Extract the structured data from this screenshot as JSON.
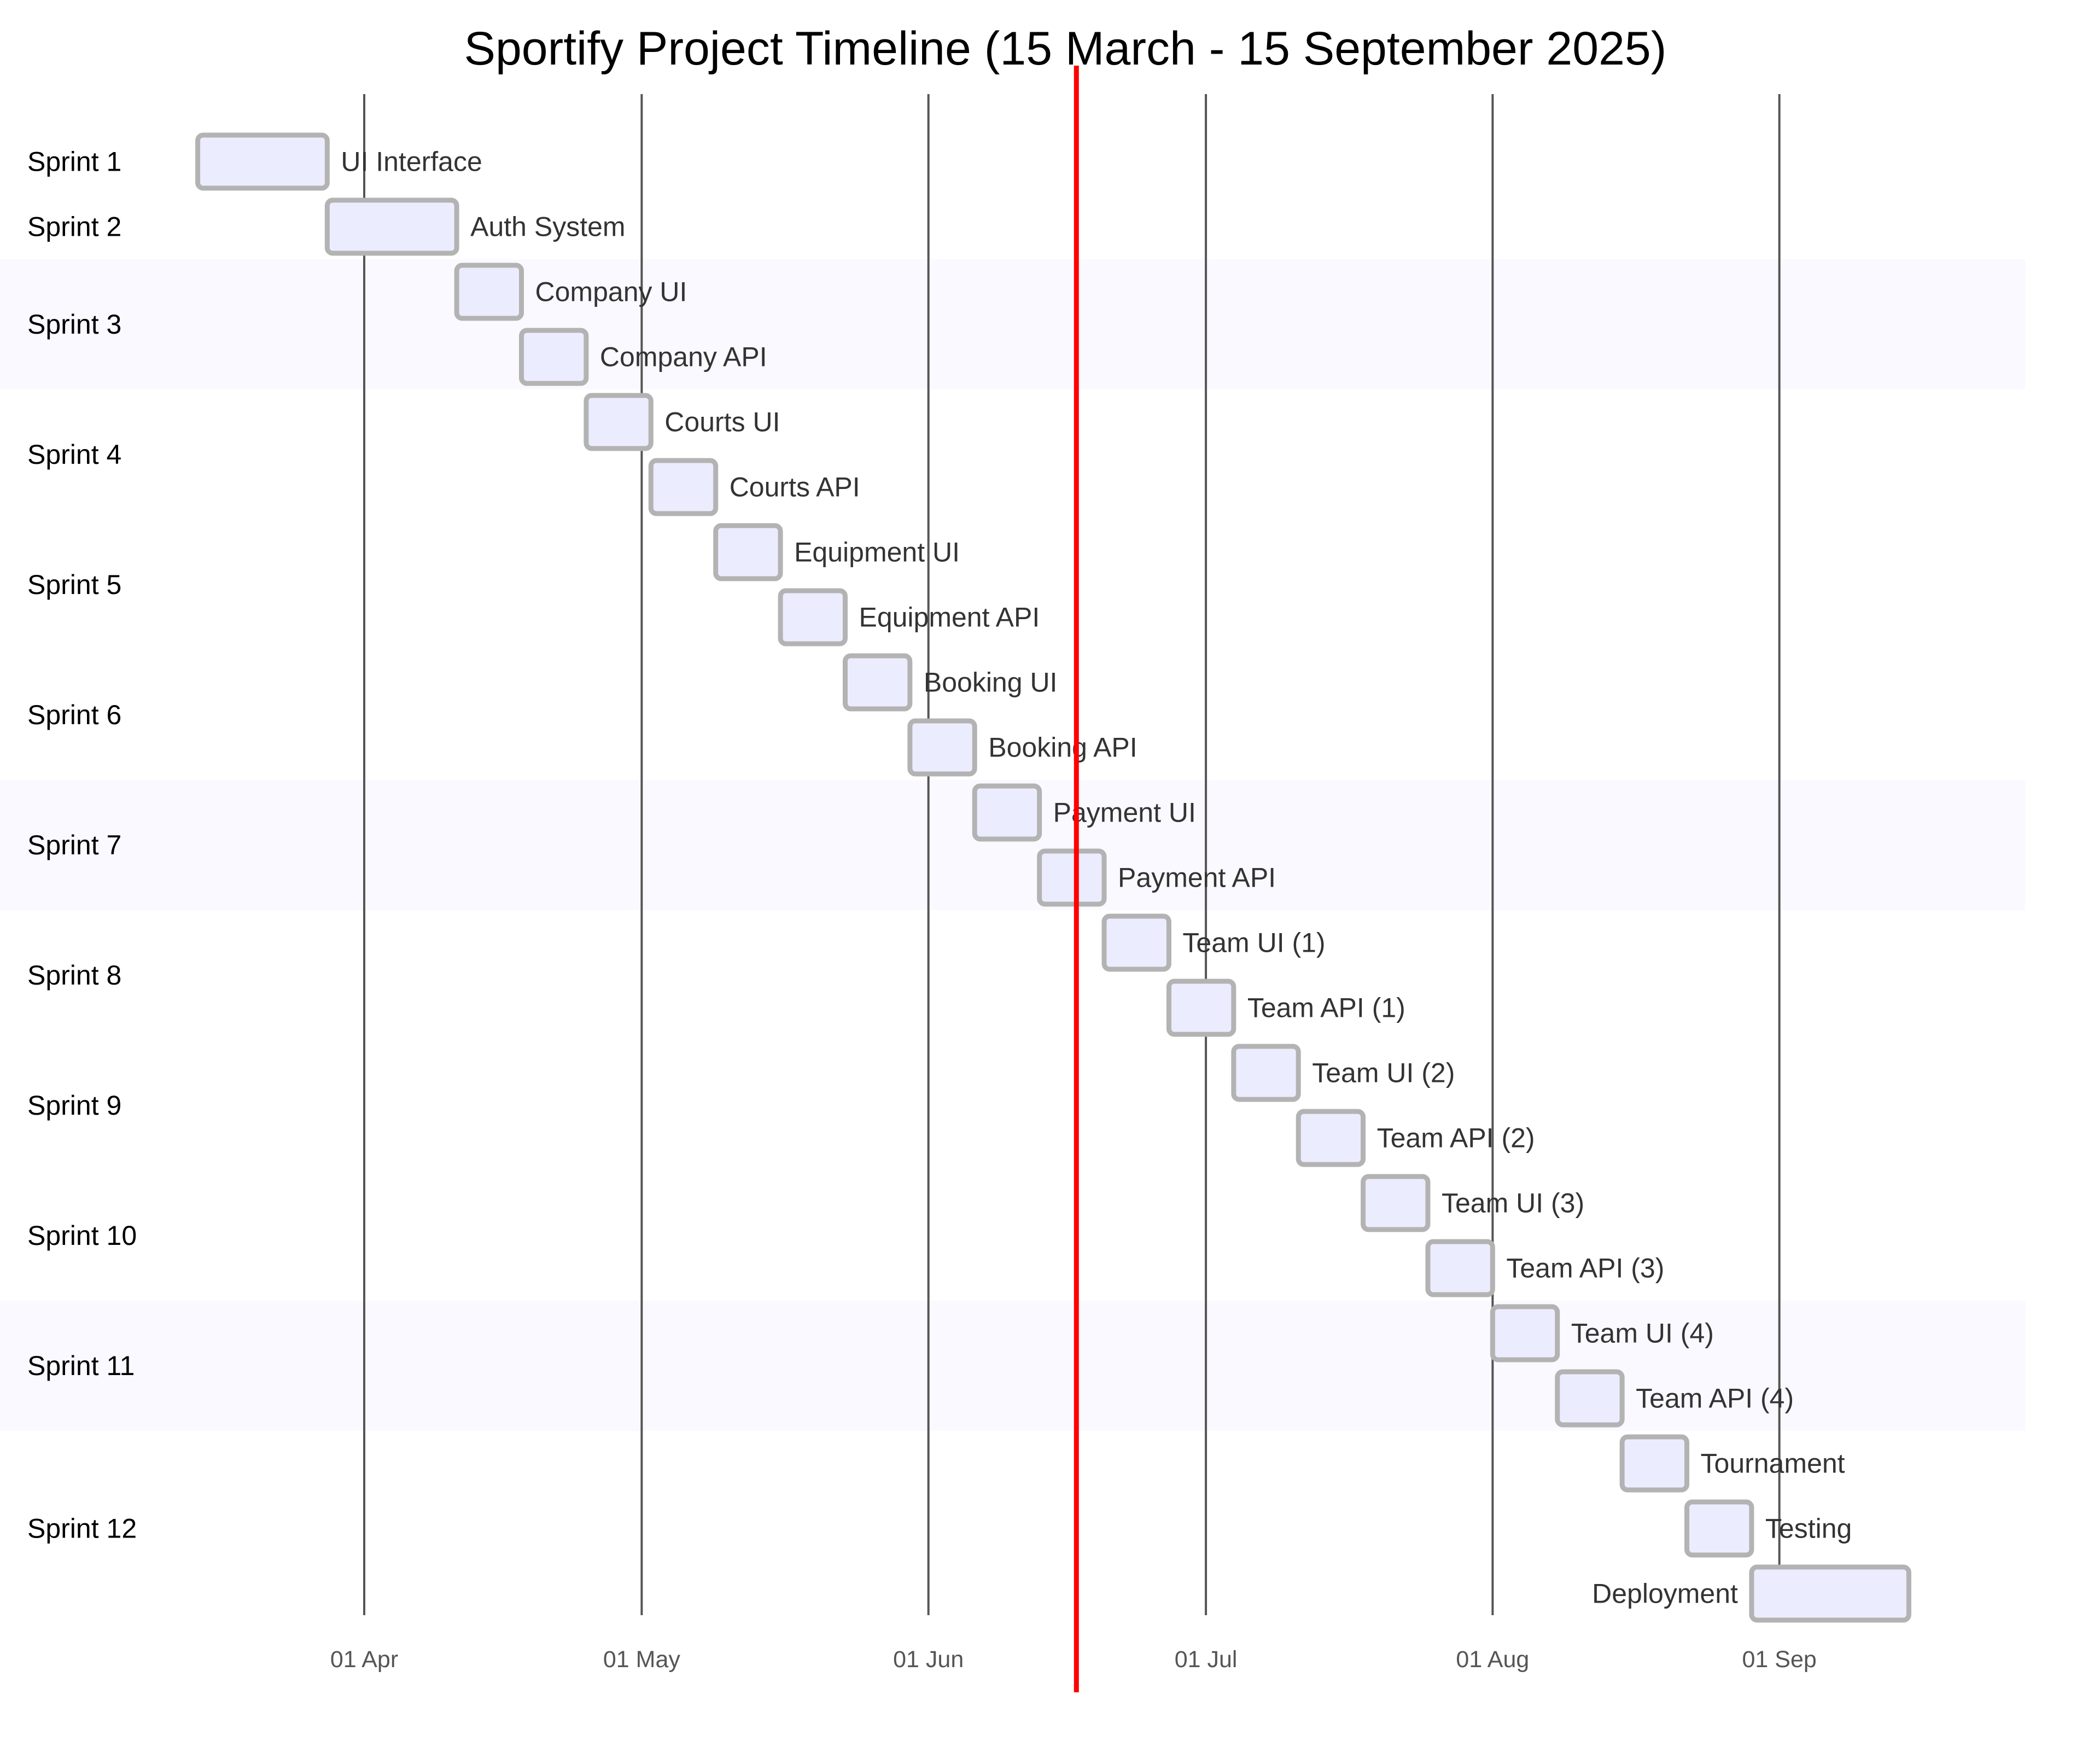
{
  "chart_data": {
    "type": "gantt",
    "title": "Sportify Project Timeline (15 March - 15 September 2025)",
    "x_range": [
      "2025-03-15",
      "2025-09-15"
    ],
    "today_marker": "2025-06-17",
    "grid": true,
    "x_ticks": [
      {
        "date": "2025-04-01",
        "label": "01 Apr"
      },
      {
        "date": "2025-05-01",
        "label": "01 May"
      },
      {
        "date": "2025-06-01",
        "label": "01 Jun"
      },
      {
        "date": "2025-07-01",
        "label": "01 Jul"
      },
      {
        "date": "2025-08-01",
        "label": "01 Aug"
      },
      {
        "date": "2025-09-01",
        "label": "01 Sep"
      }
    ],
    "sections": [
      {
        "name": "Sprint 1",
        "tasks": [
          {
            "name": "UI Interface",
            "start": "2025-03-14",
            "end": "2025-03-28"
          }
        ]
      },
      {
        "name": "Sprint 2",
        "tasks": [
          {
            "name": "Auth System",
            "start": "2025-03-28",
            "end": "2025-04-11"
          }
        ]
      },
      {
        "name": "Sprint 3",
        "tasks": [
          {
            "name": "Company UI",
            "start": "2025-04-11",
            "end": "2025-04-18"
          },
          {
            "name": "Company API",
            "start": "2025-04-18",
            "end": "2025-04-25"
          }
        ]
      },
      {
        "name": "Sprint 4",
        "tasks": [
          {
            "name": "Courts UI",
            "start": "2025-04-25",
            "end": "2025-05-02"
          },
          {
            "name": "Courts API",
            "start": "2025-05-02",
            "end": "2025-05-09"
          }
        ]
      },
      {
        "name": "Sprint 5",
        "tasks": [
          {
            "name": "Equipment UI",
            "start": "2025-05-09",
            "end": "2025-05-16"
          },
          {
            "name": "Equipment API",
            "start": "2025-05-16",
            "end": "2025-05-23"
          }
        ]
      },
      {
        "name": "Sprint 6",
        "tasks": [
          {
            "name": "Booking UI",
            "start": "2025-05-23",
            "end": "2025-05-30"
          },
          {
            "name": "Booking API",
            "start": "2025-05-30",
            "end": "2025-06-06"
          }
        ]
      },
      {
        "name": "Sprint 7",
        "tasks": [
          {
            "name": "Payment UI",
            "start": "2025-06-06",
            "end": "2025-06-13"
          },
          {
            "name": "Payment API",
            "start": "2025-06-13",
            "end": "2025-06-20"
          }
        ]
      },
      {
        "name": "Sprint 8",
        "tasks": [
          {
            "name": "Team UI (1)",
            "start": "2025-06-20",
            "end": "2025-06-27"
          },
          {
            "name": "Team API (1)",
            "start": "2025-06-27",
            "end": "2025-07-04"
          }
        ]
      },
      {
        "name": "Sprint 9",
        "tasks": [
          {
            "name": "Team UI (2)",
            "start": "2025-07-04",
            "end": "2025-07-11"
          },
          {
            "name": "Team API (2)",
            "start": "2025-07-11",
            "end": "2025-07-18"
          }
        ]
      },
      {
        "name": "Sprint 10",
        "tasks": [
          {
            "name": "Team UI (3)",
            "start": "2025-07-18",
            "end": "2025-07-25"
          },
          {
            "name": "Team API (3)",
            "start": "2025-07-25",
            "end": "2025-08-01"
          }
        ]
      },
      {
        "name": "Sprint 11",
        "tasks": [
          {
            "name": "Team UI (4)",
            "start": "2025-08-01",
            "end": "2025-08-08"
          },
          {
            "name": "Team API (4)",
            "start": "2025-08-08",
            "end": "2025-08-15"
          }
        ]
      },
      {
        "name": "Sprint 12",
        "tasks": [
          {
            "name": "Tournament",
            "start": "2025-08-15",
            "end": "2025-08-22"
          },
          {
            "name": "Testing",
            "start": "2025-08-22",
            "end": "2025-08-29"
          },
          {
            "name": "Deployment",
            "start": "2025-08-29",
            "end": "2025-09-15"
          }
        ]
      }
    ],
    "colors": {
      "bar_fill": "#ececff",
      "bar_stroke": "#b3b3b3",
      "today_line": "#ff0000",
      "grid_line": "#555555",
      "alt_section_band": "#f9f9ff"
    }
  }
}
